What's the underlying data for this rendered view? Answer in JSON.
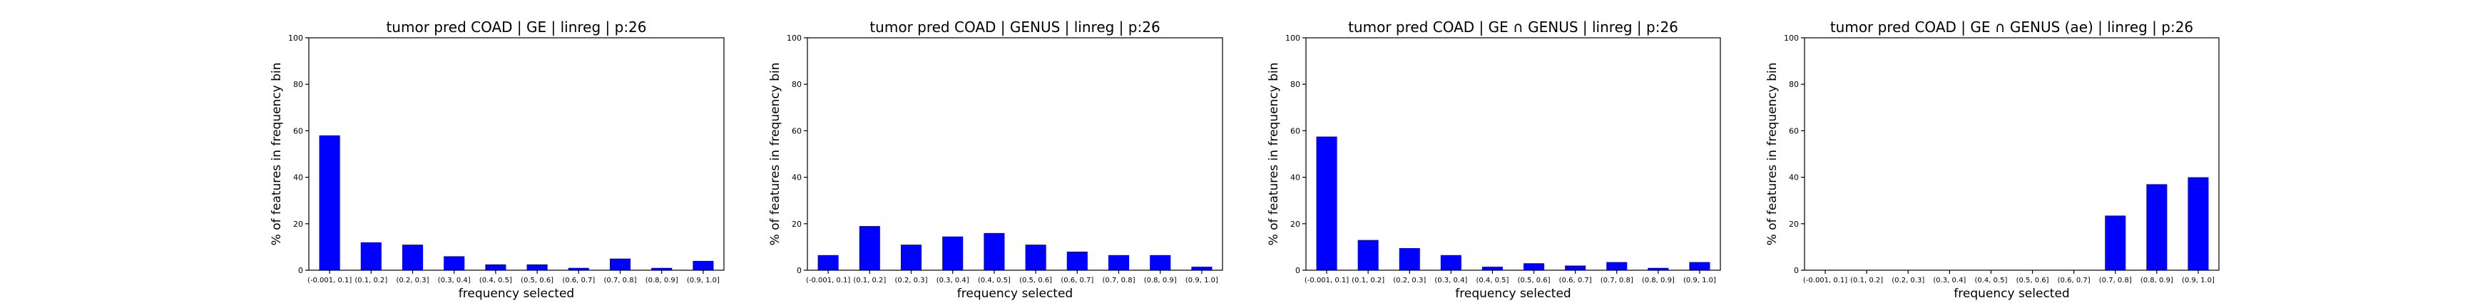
{
  "colors": {
    "bar": "#0000ff",
    "axis": "#000000",
    "background": "#ffffff"
  },
  "chart_data": [
    {
      "type": "bar",
      "title": "tumor pred COAD | GE | linreg | p:26",
      "xlabel": "frequency selected",
      "ylabel": "% of features in frequency bin",
      "ylim": [
        0,
        100
      ],
      "yticks": [
        0,
        20,
        40,
        60,
        80,
        100
      ],
      "grid": false,
      "categories": [
        "(-0.001, 0.1]",
        "(0.1, 0.2]",
        "(0.2, 0.3]",
        "(0.3, 0.4]",
        "(0.4, 0.5]",
        "(0.5, 0.6]",
        "(0.6, 0.7]",
        "(0.7, 0.8]",
        "(0.8, 0.9]",
        "(0.9, 1.0]"
      ],
      "values": [
        58,
        12,
        11,
        6,
        2.5,
        2.5,
        1,
        5,
        1,
        4
      ]
    },
    {
      "type": "bar",
      "title": "tumor pred COAD | GENUS | linreg | p:26",
      "xlabel": "frequency selected",
      "ylabel": "% of features in frequency bin",
      "ylim": [
        0,
        100
      ],
      "yticks": [
        0,
        20,
        40,
        60,
        80,
        100
      ],
      "grid": false,
      "categories": [
        "(-0.001, 0.1]",
        "(0.1, 0.2]",
        "(0.2, 0.3]",
        "(0.3, 0.4]",
        "(0.4, 0.5]",
        "(0.5, 0.6]",
        "(0.6, 0.7]",
        "(0.7, 0.8]",
        "(0.8, 0.9]",
        "(0.9, 1.0]"
      ],
      "values": [
        6.5,
        19,
        11,
        14.5,
        16,
        11,
        8,
        6.5,
        6.5,
        1.5
      ]
    },
    {
      "type": "bar",
      "title": "tumor pred COAD | GE ∩ GENUS | linreg | p:26",
      "xlabel": "frequency selected",
      "ylabel": "% of features in frequency bin",
      "ylim": [
        0,
        100
      ],
      "yticks": [
        0,
        20,
        40,
        60,
        80,
        100
      ],
      "grid": false,
      "categories": [
        "(-0.001, 0.1]",
        "(0.1, 0.2]",
        "(0.2, 0.3]",
        "(0.3, 0.4]",
        "(0.4, 0.5]",
        "(0.5, 0.6]",
        "(0.6, 0.7]",
        "(0.7, 0.8]",
        "(0.8, 0.9]",
        "(0.9, 1.0]"
      ],
      "values": [
        57.5,
        13,
        9.5,
        6.5,
        1.5,
        3,
        2,
        3.5,
        1,
        3.5
      ]
    },
    {
      "type": "bar",
      "title": "tumor pred COAD | GE ∩ GENUS (ae) | linreg | p:26",
      "xlabel": "frequency selected",
      "ylabel": "% of features in frequency bin",
      "ylim": [
        0,
        100
      ],
      "yticks": [
        0,
        20,
        40,
        60,
        80,
        100
      ],
      "grid": false,
      "categories": [
        "(-0.001, 0.1]",
        "(0.1, 0.2]",
        "(0.2, 0.3]",
        "(0.3, 0.4]",
        "(0.4, 0.5]",
        "(0.5, 0.6]",
        "(0.6, 0.7]",
        "(0.7, 0.8]",
        "(0.8, 0.9]",
        "(0.9, 1.0]"
      ],
      "values": [
        0,
        0,
        0,
        0,
        0,
        0,
        0,
        23.5,
        37,
        40
      ]
    }
  ]
}
